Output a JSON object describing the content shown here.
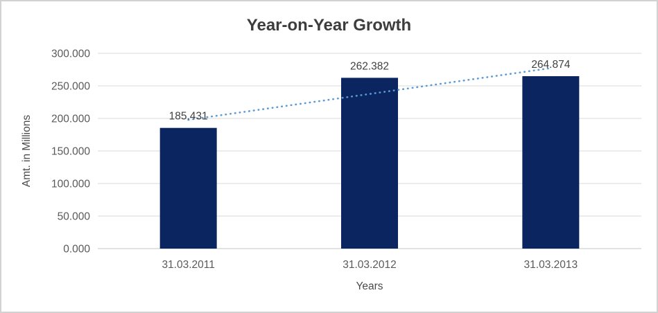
{
  "window": {
    "background": "#FFFFFF",
    "border_color": "#D2D2D2"
  },
  "chart_data": {
    "type": "bar",
    "title": "Year-on-Year Growth",
    "categories": [
      "31.03.2011",
      "31.03.2012",
      "31.03.2013"
    ],
    "values": [
      185.431,
      262.382,
      264.874
    ],
    "data_labels": [
      "185.431",
      "262.382",
      "264.874"
    ],
    "xlabel": "Years",
    "ylabel": "Amt. in Millions",
    "ylim": [
      0,
      300
    ],
    "ytick_interval": 50,
    "ytick_labels": [
      "0.000",
      "50.000",
      "100.000",
      "150.000",
      "200.000",
      "250.000",
      "300.000"
    ],
    "grid": true,
    "legend": "none",
    "trendline": {
      "type": "linear",
      "style": "dotted"
    },
    "colors": {
      "bar": "#0B2560",
      "trendline": "#5B9BD5",
      "gridline": "#D9D9D9",
      "axis_line": "#C6C6C6",
      "title_text": "#3D3D3D",
      "tick_text": "#595959",
      "data_label_text": "#404040",
      "axis_title_text": "#4A4A4A"
    }
  }
}
